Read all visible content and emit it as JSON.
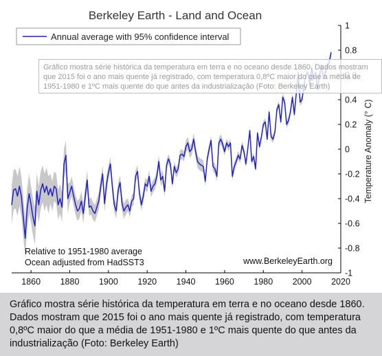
{
  "chart_data": {
    "type": "line",
    "title": "Berkeley Earth - Land and Ocean",
    "ylabel": "Temperature Anomaly (° C)",
    "xlim": [
      1850,
      2020
    ],
    "ylim": [
      -1,
      1
    ],
    "x_ticks": [
      1860,
      1880,
      1900,
      1920,
      1940,
      1960,
      1980,
      2000,
      2020
    ],
    "y_ticks": [
      -1,
      -0.8,
      -0.6,
      -0.4,
      -0.2,
      0,
      0.2,
      0.4,
      0.6,
      0.8,
      1
    ],
    "y_tick_labels": [
      "-1",
      "-0.8",
      "-0.6",
      "-0.4",
      "-0.2",
      "0",
      "0.2",
      "0.4",
      "0.6",
      "0.8",
      "1"
    ],
    "grid": false,
    "legend_position": "top-left",
    "series": [
      {
        "name": "Annual average with 95% confidence interval",
        "color": "#2020c8",
        "band_color": "#c8c8c8",
        "x": [
          1850,
          1851,
          1852,
          1853,
          1854,
          1855,
          1856,
          1857,
          1858,
          1859,
          1860,
          1861,
          1862,
          1863,
          1864,
          1865,
          1866,
          1867,
          1868,
          1869,
          1870,
          1871,
          1872,
          1873,
          1874,
          1875,
          1876,
          1877,
          1878,
          1879,
          1880,
          1881,
          1882,
          1883,
          1884,
          1885,
          1886,
          1887,
          1888,
          1889,
          1890,
          1891,
          1892,
          1893,
          1894,
          1895,
          1896,
          1897,
          1898,
          1899,
          1900,
          1901,
          1902,
          1903,
          1904,
          1905,
          1906,
          1907,
          1908,
          1909,
          1910,
          1911,
          1912,
          1913,
          1914,
          1915,
          1916,
          1917,
          1918,
          1919,
          1920,
          1921,
          1922,
          1923,
          1924,
          1925,
          1926,
          1927,
          1928,
          1929,
          1930,
          1931,
          1932,
          1933,
          1934,
          1935,
          1936,
          1937,
          1938,
          1939,
          1940,
          1941,
          1942,
          1943,
          1944,
          1945,
          1946,
          1947,
          1948,
          1949,
          1950,
          1951,
          1952,
          1953,
          1954,
          1955,
          1956,
          1957,
          1958,
          1959,
          1960,
          1961,
          1962,
          1963,
          1964,
          1965,
          1966,
          1967,
          1968,
          1969,
          1970,
          1971,
          1972,
          1973,
          1974,
          1975,
          1976,
          1977,
          1978,
          1979,
          1980,
          1981,
          1982,
          1983,
          1984,
          1985,
          1986,
          1987,
          1988,
          1989,
          1990,
          1991,
          1992,
          1993,
          1994,
          1995,
          1996,
          1997,
          1998,
          1999,
          2000,
          2001,
          2002,
          2003,
          2004,
          2005,
          2006,
          2007,
          2008,
          2009,
          2010,
          2011,
          2012,
          2013,
          2014,
          2015
        ],
        "values": [
          -0.45,
          -0.33,
          -0.32,
          -0.38,
          -0.3,
          -0.38,
          -0.55,
          -0.72,
          -0.48,
          -0.36,
          -0.45,
          -0.55,
          -0.62,
          -0.34,
          -0.45,
          -0.33,
          -0.28,
          -0.35,
          -0.3,
          -0.37,
          -0.32,
          -0.38,
          -0.3,
          -0.32,
          -0.45,
          -0.4,
          -0.47,
          -0.12,
          -0.05,
          -0.4,
          -0.35,
          -0.3,
          -0.38,
          -0.45,
          -0.5,
          -0.48,
          -0.42,
          -0.52,
          -0.38,
          -0.25,
          -0.47,
          -0.46,
          -0.5,
          -0.52,
          -0.47,
          -0.42,
          -0.3,
          -0.2,
          -0.44,
          -0.28,
          -0.19,
          -0.12,
          -0.3,
          -0.45,
          -0.5,
          -0.33,
          -0.27,
          -0.44,
          -0.5,
          -0.47,
          -0.45,
          -0.5,
          -0.42,
          -0.4,
          -0.22,
          -0.18,
          -0.36,
          -0.45,
          -0.38,
          -0.28,
          -0.3,
          -0.22,
          -0.34,
          -0.3,
          -0.28,
          -0.22,
          -0.1,
          -0.25,
          -0.22,
          -0.34,
          -0.13,
          -0.08,
          -0.12,
          -0.28,
          -0.14,
          -0.19,
          -0.16,
          -0.05,
          -0.04,
          -0.06,
          0.02,
          0.05,
          -0.02,
          0.0,
          0.08,
          -0.02,
          -0.1,
          -0.12,
          -0.13,
          -0.14,
          -0.26,
          -0.08,
          0.0,
          0.07,
          -0.14,
          -0.16,
          -0.22,
          0.05,
          0.08,
          0.04,
          -0.02,
          0.05,
          0.02,
          0.05,
          -0.22,
          -0.14,
          -0.1,
          -0.05,
          -0.08,
          0.03,
          -0.02,
          -0.12,
          0.01,
          0.15,
          -0.1,
          -0.06,
          -0.16,
          0.13,
          0.02,
          0.1,
          0.2,
          0.22,
          0.08,
          0.3,
          0.1,
          0.08,
          0.14,
          0.32,
          0.36,
          0.22,
          0.42,
          0.38,
          0.2,
          0.23,
          0.3,
          0.42,
          0.28,
          0.45,
          0.62,
          0.38,
          0.4,
          0.52,
          0.6,
          0.62,
          0.52,
          0.66,
          0.57,
          0.62,
          0.48,
          0.6,
          0.68,
          0.57,
          0.62,
          0.67,
          0.7,
          0.78
        ],
        "band_halfwidth": [
          0.16,
          0.16,
          0.16,
          0.16,
          0.16,
          0.16,
          0.16,
          0.16,
          0.16,
          0.16,
          0.15,
          0.15,
          0.15,
          0.15,
          0.15,
          0.15,
          0.15,
          0.15,
          0.15,
          0.15,
          0.12,
          0.12,
          0.12,
          0.12,
          0.12,
          0.12,
          0.12,
          0.12,
          0.12,
          0.12,
          0.08,
          0.08,
          0.08,
          0.08,
          0.08,
          0.08,
          0.08,
          0.08,
          0.08,
          0.08,
          0.07,
          0.07,
          0.07,
          0.07,
          0.07,
          0.07,
          0.07,
          0.07,
          0.07,
          0.07,
          0.06,
          0.06,
          0.06,
          0.06,
          0.06,
          0.06,
          0.06,
          0.06,
          0.06,
          0.06,
          0.05,
          0.05,
          0.05,
          0.05,
          0.05,
          0.05,
          0.05,
          0.05,
          0.05,
          0.05,
          0.05,
          0.05,
          0.05,
          0.05,
          0.05,
          0.05,
          0.05,
          0.05,
          0.05,
          0.05,
          0.04,
          0.04,
          0.04,
          0.04,
          0.04,
          0.04,
          0.04,
          0.04,
          0.04,
          0.04,
          0.05,
          0.05,
          0.05,
          0.05,
          0.05,
          0.05,
          0.05,
          0.05,
          0.05,
          0.05,
          0.04,
          0.04,
          0.04,
          0.04,
          0.04,
          0.04,
          0.04,
          0.04,
          0.04,
          0.04,
          0.035,
          0.035,
          0.035,
          0.035,
          0.035,
          0.035,
          0.035,
          0.035,
          0.035,
          0.035,
          0.03,
          0.03,
          0.03,
          0.03,
          0.03,
          0.03,
          0.03,
          0.03,
          0.03,
          0.03,
          0.03,
          0.03,
          0.03,
          0.03,
          0.03,
          0.03,
          0.03,
          0.03,
          0.03,
          0.03,
          0.03,
          0.03,
          0.03,
          0.03,
          0.03,
          0.03,
          0.03,
          0.03,
          0.03,
          0.03,
          0.03,
          0.03,
          0.03,
          0.03,
          0.03,
          0.03,
          0.03,
          0.03,
          0.03,
          0.03,
          0.03,
          0.03,
          0.03,
          0.03,
          0.03,
          0.03
        ]
      }
    ],
    "annotations": {
      "baseline_note": "Relative to 1951-1980 average",
      "ocean_note": "Ocean adjusted from HadSST3",
      "website": "www.BerkeleyEarth.org"
    }
  },
  "tooltip": {
    "text": "Gráfico mostra série histórica da temperatura em terra e no oceano desde 1860. Dados mostram que 2015 foi o ano mais quente já registrado, com temperatura 0,8ºC maior do que a média de 1951-1980 e 1ºC mais quente do que antes da industrialização (Foto: Berkeley Earth)"
  },
  "caption": {
    "text": "Gráfico mostra série histórica da temperatura em terra e no oceano desde 1860. Dados mostram que 2015 foi o ano mais quente já registrado, com temperatura 0,8ºC maior do que a média de 1951-1980 e 1ºC mais quente do que antes da industrialização (Foto: Berkeley Earth)"
  }
}
